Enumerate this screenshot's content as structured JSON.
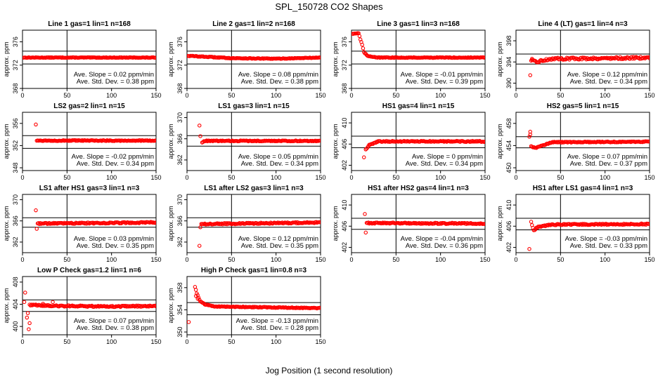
{
  "figure": {
    "title": "SPL_150728  CO2 Shapes",
    "xlabel": "Jog Position (1 second resolution)"
  },
  "chart_data": [
    {
      "type": "scatter",
      "title": "Line 1 gas=1 lin=1 n=168",
      "ylabel": "approx. ppm",
      "xlim": [
        0,
        150
      ],
      "ylim": [
        368,
        378
      ],
      "yticks": [
        368,
        372,
        376
      ],
      "xticks": [
        0,
        50,
        100,
        150
      ],
      "hlines": [
        374.4,
        372.2
      ],
      "vline": 50,
      "annotation": [
        "Ave. Slope = 0.02 ppm/min",
        "Ave. Std. Dev. = 0.38 ppm"
      ],
      "series": [
        {
          "start": 1,
          "end": 150,
          "pts": [
            [
              1,
              373.3
            ],
            [
              150,
              373.3
            ]
          ],
          "noise": 0.05
        }
      ]
    },
    {
      "type": "scatter",
      "title": "Line 2 gas=1 lin=2 n=168",
      "ylabel": "approx. ppm",
      "xlim": [
        0,
        150
      ],
      "ylim": [
        368,
        378
      ],
      "yticks": [
        368,
        372,
        376
      ],
      "xticks": [
        0,
        50,
        100,
        150
      ],
      "hlines": [
        374.4,
        372.2
      ],
      "vline": 50,
      "annotation": [
        "Ave. Slope = 0.08 ppm/min",
        "Ave. Std. Dev. = 0.38 ppm"
      ],
      "series": [
        {
          "start": 1,
          "end": 150,
          "pts": [
            [
              1,
              373.6
            ],
            [
              50,
              373.2
            ],
            [
              100,
              373.1
            ],
            [
              150,
              373.3
            ]
          ],
          "noise": 0.06
        }
      ]
    },
    {
      "type": "scatter",
      "title": "Line 3 gas=1 lin=3 n=168",
      "ylabel": "approx. ppm",
      "xlim": [
        0,
        150
      ],
      "ylim": [
        368,
        378
      ],
      "yticks": [
        368,
        372,
        376
      ],
      "xticks": [
        0,
        50,
        100,
        150
      ],
      "hlines": [
        374.4,
        372.2
      ],
      "vline": 50,
      "annotation": [
        "Ave. Slope = -0.01 ppm/min",
        "Ave. Std. Dev. = 0.39 ppm"
      ],
      "series": [
        {
          "start": 1,
          "end": 150,
          "pts": [
            [
              1,
              377.4
            ],
            [
              8,
              377.5
            ],
            [
              10,
              376.4
            ],
            [
              12,
              375.5
            ],
            [
              14,
              374.2
            ],
            [
              18,
              373.6
            ],
            [
              30,
              373.3
            ],
            [
              150,
              373.3
            ]
          ],
          "noise": 0.06
        }
      ]
    },
    {
      "type": "scatter",
      "title": "Line 4 (LT) gas=1 lin=4 n=3",
      "ylabel": "approx. ppm",
      "xlim": [
        0,
        150
      ],
      "ylim": [
        389,
        400
      ],
      "yticks": [
        390,
        394,
        398
      ],
      "xticks": [
        0,
        50,
        100,
        150
      ],
      "hlines": [
        395.5,
        393.6
      ],
      "vline": 50,
      "annotation": [
        "Ave. Slope = 0.12 ppm/min",
        "Ave. Std. Dev. = 0.34 ppm"
      ],
      "series": [
        {
          "start": 17,
          "end": 150,
          "pts": [
            [
              17,
              394.3
            ],
            [
              22,
              394.0
            ],
            [
              40,
              394.6
            ],
            [
              100,
              394.7
            ],
            [
              150,
              394.8
            ]
          ],
          "noise": 0.2
        }
      ],
      "outliers": [
        [
          16,
          391.5
        ],
        [
          18,
          394.6
        ]
      ]
    },
    {
      "type": "scatter",
      "title": "LS2 gas=2 lin=1 n=15",
      "ylabel": "approx. ppm",
      "xlim": [
        0,
        150
      ],
      "ylim": [
        347.5,
        358
      ],
      "yticks": [
        348,
        352,
        356
      ],
      "xticks": [
        0,
        50,
        100,
        150
      ],
      "hlines": [
        353.8,
        351.5
      ],
      "vline": 50,
      "annotation": [
        "Ave. Slope = -0.02 ppm/min",
        "Ave. Std. Dev. = 0.34 ppm"
      ],
      "series": [
        {
          "start": 16,
          "end": 150,
          "pts": [
            [
              16,
              352.9
            ],
            [
              150,
              352.9
            ]
          ],
          "noise": 0.08
        }
      ],
      "outliers": [
        [
          15,
          355.8
        ]
      ]
    },
    {
      "type": "scatter",
      "title": "LS1 gas=3 lin=1 n=15",
      "ylabel": "approx. ppm",
      "xlim": [
        0,
        150
      ],
      "ylim": [
        360,
        371
      ],
      "yticks": [
        362,
        366,
        370
      ],
      "xticks": [
        0,
        50,
        100,
        150
      ],
      "hlines": [
        366.6,
        364.6
      ],
      "vline": 50,
      "annotation": [
        "Ave. Slope = 0.05 ppm/min",
        "Ave. Std. Dev. = 0.34 ppm"
      ],
      "series": [
        {
          "start": 17,
          "end": 150,
          "pts": [
            [
              17,
              365.3
            ],
            [
              20,
              365.6
            ],
            [
              150,
              365.6
            ]
          ],
          "noise": 0.08
        }
      ],
      "outliers": [
        [
          14,
          368.5
        ],
        [
          15,
          366.5
        ]
      ]
    },
    {
      "type": "scatter",
      "title": "HS1 gas=4 lin=1 n=15",
      "ylabel": "approx. ppm",
      "xlim": [
        0,
        150
      ],
      "ylim": [
        401,
        412
      ],
      "yticks": [
        402,
        406,
        410
      ],
      "xticks": [
        0,
        50,
        100,
        150
      ],
      "hlines": [
        407.5,
        405.3
      ],
      "vline": 50,
      "annotation": [
        "Ave. Slope = 0 ppm/min",
        "Ave. Std. Dev. = 0.34 ppm"
      ],
      "series": [
        {
          "start": 16,
          "end": 150,
          "pts": [
            [
              16,
              405.0
            ],
            [
              20,
              405.8
            ],
            [
              30,
              406.5
            ],
            [
              150,
              406.5
            ]
          ],
          "noise": 0.1
        }
      ],
      "outliers": [
        [
          14,
          403.5
        ]
      ]
    },
    {
      "type": "scatter",
      "title": "HS2 gas=5 lin=1 n=15",
      "ylabel": "approx. ppm",
      "xlim": [
        0,
        150
      ],
      "ylim": [
        449.5,
        460
      ],
      "yticks": [
        450,
        454,
        458
      ],
      "xticks": [
        0,
        50,
        100,
        150
      ],
      "hlines": [
        455.6,
        453.6
      ],
      "vline": 50,
      "annotation": [
        "Ave. Slope = 0.07 ppm/min",
        "Ave. Std. Dev. = 0.37 ppm"
      ],
      "series": [
        {
          "start": 18,
          "end": 150,
          "pts": [
            [
              18,
              453.8
            ],
            [
              22,
              453.6
            ],
            [
              40,
              454.6
            ],
            [
              150,
              454.7
            ]
          ],
          "noise": 0.08
        }
      ],
      "outliers": [
        [
          15,
          455.6
        ],
        [
          16,
          456.5
        ],
        [
          16,
          456.0
        ],
        [
          17,
          453.9
        ]
      ]
    },
    {
      "type": "scatter",
      "title": "LS1 after HS1 gas=3 lin=1 n=3",
      "ylabel": "approx. ppm",
      "xlim": [
        0,
        150
      ],
      "ylim": [
        360,
        371
      ],
      "yticks": [
        362,
        366,
        370
      ],
      "xticks": [
        0,
        50,
        100,
        150
      ],
      "hlines": [
        366.6,
        364.8
      ],
      "vline": 50,
      "annotation": [
        "Ave. Slope = 0.03 ppm/min",
        "Ave. Std. Dev. = 0.35 ppm"
      ],
      "series": [
        {
          "start": 17,
          "end": 150,
          "pts": [
            [
              17,
              365.5
            ],
            [
              150,
              365.7
            ]
          ],
          "noise": 0.12
        }
      ],
      "outliers": [
        [
          15,
          368.0
        ],
        [
          16,
          364.5
        ]
      ]
    },
    {
      "type": "scatter",
      "title": "LS1 after LS2 gas=3 lin=1 n=3",
      "ylabel": "approx. ppm",
      "xlim": [
        0,
        150
      ],
      "ylim": [
        360,
        371
      ],
      "yticks": [
        362,
        366,
        370
      ],
      "xticks": [
        0,
        50,
        100,
        150
      ],
      "hlines": [
        366.6,
        364.8
      ],
      "vline": 50,
      "annotation": [
        "Ave. Slope = 0.12 ppm/min",
        "Ave. Std. Dev. = 0.35 ppm"
      ],
      "series": [
        {
          "start": 16,
          "end": 150,
          "pts": [
            [
              16,
              365.4
            ],
            [
              150,
              365.7
            ]
          ],
          "noise": 0.12
        }
      ],
      "outliers": [
        [
          14,
          361.3
        ],
        [
          15,
          364.8
        ]
      ]
    },
    {
      "type": "scatter",
      "title": "HS1 after HS2 gas=4 lin=1 n=3",
      "ylabel": "approx. ppm",
      "xlim": [
        0,
        150
      ],
      "ylim": [
        401,
        412
      ],
      "yticks": [
        402,
        406,
        410
      ],
      "xticks": [
        0,
        50,
        100,
        150
      ],
      "hlines": [
        407.5,
        405.4
      ],
      "vline": 50,
      "annotation": [
        "Ave. Slope = -0.04 ppm/min",
        "Ave. Std. Dev. = 0.36 ppm"
      ],
      "series": [
        {
          "start": 17,
          "end": 150,
          "pts": [
            [
              17,
              406.6
            ],
            [
              150,
              406.5
            ]
          ],
          "noise": 0.12
        }
      ],
      "outliers": [
        [
          15,
          408.3
        ],
        [
          16,
          404.8
        ]
      ]
    },
    {
      "type": "scatter",
      "title": "HS1 after LS1 gas=4 lin=1 n=3",
      "ylabel": "approx. ppm",
      "xlim": [
        0,
        150
      ],
      "ylim": [
        401,
        412
      ],
      "yticks": [
        402,
        406,
        410
      ],
      "xticks": [
        0,
        50,
        100,
        150
      ],
      "hlines": [
        407.5,
        405.3
      ],
      "vline": 50,
      "annotation": [
        "Ave. Slope = -0.03 ppm/min",
        "Ave. Std. Dev. = 0.33 ppm"
      ],
      "series": [
        {
          "start": 17,
          "end": 150,
          "pts": [
            [
              17,
              406.8
            ],
            [
              20,
              405.2
            ],
            [
              24,
              405.8
            ],
            [
              40,
              406.3
            ],
            [
              150,
              406.4
            ]
          ],
          "noise": 0.12
        }
      ],
      "outliers": [
        [
          15,
          401.7
        ]
      ]
    },
    {
      "type": "scatter",
      "title": "Low P Check gas=1.2 lin=1 n=6",
      "ylabel": "approx. ppm",
      "xlim": [
        0,
        150
      ],
      "ylim": [
        398.5,
        409
      ],
      "yticks": [
        400,
        404,
        408
      ],
      "xticks": [
        0,
        50,
        100,
        150
      ],
      "hlines": [
        404.8,
        402.7
      ],
      "vline": 50,
      "annotation": [
        "Ave. Slope = 0.07 ppm/min",
        "Ave. Std. Dev. = 0.38 ppm"
      ],
      "series": [
        {
          "start": 8,
          "end": 150,
          "pts": [
            [
              8,
              403.9
            ],
            [
              20,
              403.8
            ],
            [
              33,
              403.7
            ],
            [
              50,
              403.7
            ],
            [
              100,
              403.6
            ],
            [
              150,
              403.7
            ]
          ],
          "noise": 0.12
        }
      ],
      "outliers": [
        [
          3,
          406.1
        ],
        [
          2,
          404.4
        ],
        [
          5,
          401.6
        ],
        [
          6,
          402.4
        ],
        [
          7,
          399.5
        ],
        [
          8,
          400.6
        ],
        [
          34,
          404.4
        ],
        [
          23,
          404.1
        ]
      ]
    },
    {
      "type": "scatter",
      "title": "High P Check gas=1 lin=0.8 n=3",
      "ylabel": "approx. ppm",
      "xlim": [
        0,
        150
      ],
      "ylim": [
        349.5,
        360
      ],
      "yticks": [
        350,
        354,
        358
      ],
      "xticks": [
        0,
        50,
        100,
        150
      ],
      "hlines": [
        355.3,
        353.1
      ],
      "vline": 50,
      "annotation": [
        "Ave. Slope = -0.13 ppm/min",
        "Ave. Std. Dev. = 0.28 ppm"
      ],
      "series": [
        {
          "start": 9,
          "end": 150,
          "pts": [
            [
              9,
              358.1
            ],
            [
              11,
              357.0
            ],
            [
              13,
              356.2
            ],
            [
              15,
              355.5
            ],
            [
              20,
              355.0
            ],
            [
              30,
              354.6
            ],
            [
              150,
              354.3
            ]
          ],
          "noise": 0.07
        }
      ],
      "outliers": [
        [
          2,
          351.8
        ],
        [
          10,
          356.5
        ],
        [
          12,
          356.0
        ]
      ]
    }
  ]
}
